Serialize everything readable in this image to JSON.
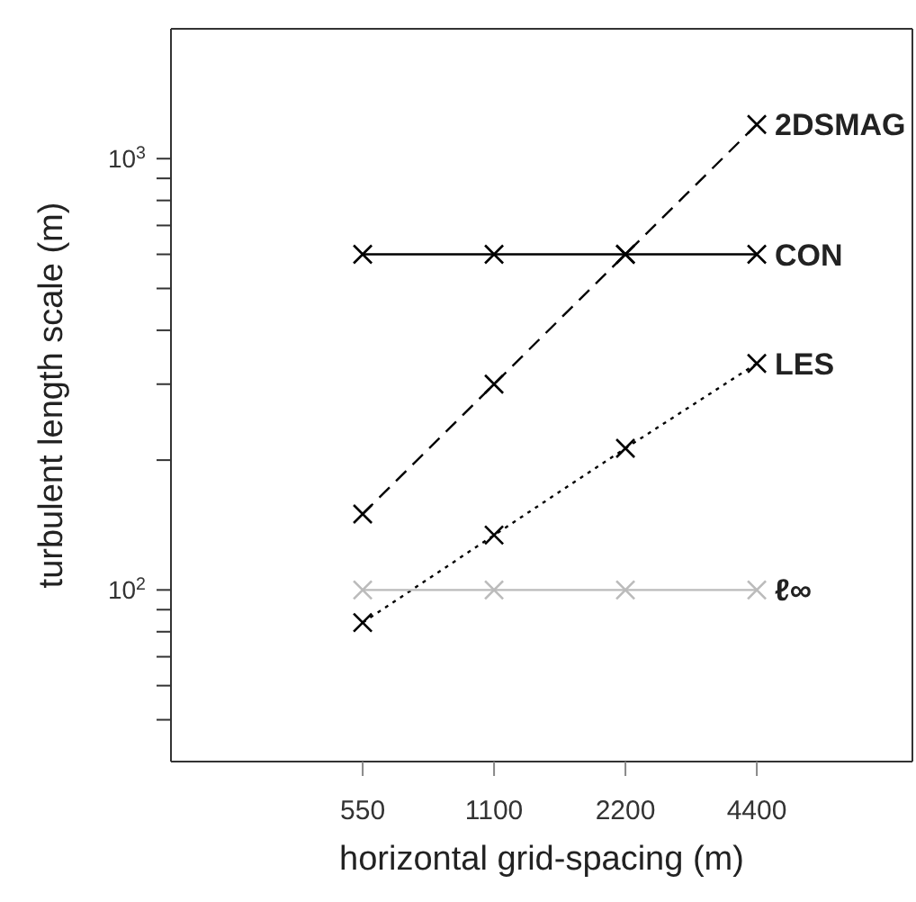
{
  "chart_data": {
    "type": "line",
    "xlabel": "horizontal grid-spacing (m)",
    "ylabel": "turbulent length scale (m)",
    "log": "xy",
    "marker": "cross",
    "x": [
      550,
      1100,
      2200,
      4400
    ],
    "xlim": [
      200,
      10000
    ],
    "xticks": [
      550,
      1100,
      2200,
      4400
    ],
    "ylim": [
      40,
      2000
    ],
    "yticks": [
      {
        "value": 50,
        "label": null
      },
      {
        "value": 60,
        "label": null
      },
      {
        "value": 70,
        "label": null
      },
      {
        "value": 80,
        "label": null
      },
      {
        "value": 90,
        "label": null
      },
      {
        "value": 100,
        "label": "10$^{2}$"
      },
      {
        "value": 200,
        "label": null
      },
      {
        "value": 300,
        "label": null
      },
      {
        "value": 400,
        "label": null
      },
      {
        "value": 500,
        "label": null
      },
      {
        "value": 600,
        "label": null
      },
      {
        "value": 700,
        "label": null
      },
      {
        "value": 800,
        "label": null
      },
      {
        "value": 900,
        "label": null
      },
      {
        "value": 1000,
        "label": "10$^{3}$"
      }
    ],
    "series": [
      {
        "name": "2DSMAG",
        "color": "#000000",
        "line_style": "dashed",
        "values": [
          150,
          300,
          600,
          1200
        ]
      },
      {
        "name": "CON",
        "color": "#000000",
        "line_style": "solid",
        "values": [
          600,
          600,
          600,
          600
        ]
      },
      {
        "name": "LES",
        "color": "#000000",
        "line_style": "dotted",
        "values": [
          84,
          134,
          213,
          335
        ]
      },
      {
        "name": "ℓ∞",
        "color": "#bbbbbb",
        "line_style": "solid",
        "values": [
          100,
          100,
          100,
          100
        ]
      }
    ]
  }
}
